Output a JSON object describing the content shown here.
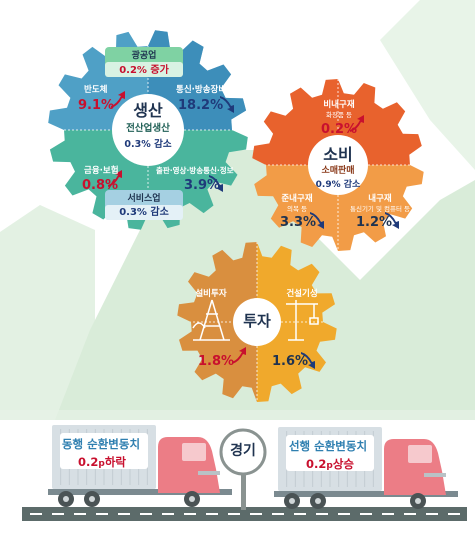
{
  "production": {
    "title": "생산",
    "subtitle": "전산업생산",
    "change": "0.3% 감소",
    "mining": {
      "label": "광공업",
      "value": "0.2% 증가"
    },
    "semiconductor": {
      "label": "반도체",
      "value": "9.1%",
      "direction": "up"
    },
    "telecom": {
      "label": "통신·방송장비",
      "value": "18.2%",
      "direction": "down"
    },
    "finance": {
      "label": "금융·보험",
      "value": "0.8%",
      "direction": "up"
    },
    "publishing": {
      "label": "출판·영상·방송통신·정보",
      "value": "3.9%",
      "direction": "down"
    },
    "services": {
      "label": "서비스업",
      "value": "0.3% 감소"
    }
  },
  "consumption": {
    "title": "소비",
    "subtitle": "소매판매",
    "change": "0.9% 감소",
    "nondurable": {
      "label": "비내구재",
      "sub": "화장품 등",
      "value": "0.2%",
      "direction": "up"
    },
    "semidurable": {
      "label": "준내구재",
      "sub": "의복 등",
      "value": "3.3%",
      "direction": "down"
    },
    "durable": {
      "label": "내구재",
      "sub": "통신기기 및 컴퓨터 등",
      "value": "1.2%",
      "direction": "down"
    }
  },
  "investment": {
    "title": "투자",
    "facility": {
      "label": "설비투자",
      "value": "1.8%",
      "direction": "up"
    },
    "construction": {
      "label": "건설기성",
      "value": "1.6%",
      "direction": "down"
    }
  },
  "economy": {
    "title": "경기",
    "coincident": {
      "label": "동행 순환변동치",
      "value": "0.2",
      "unit": "p",
      "suffix": "하락"
    },
    "leading": {
      "label": "선행 순환변동치",
      "value": "0.2",
      "unit": "p",
      "suffix": "상승"
    }
  },
  "colors": {
    "prod_top": "#4fa0c6",
    "prod_bottom": "#4ab59d",
    "cons_top": "#e8622d",
    "cons_bottom": "#f29c47",
    "inv_left": "#d98f3f",
    "inv_right": "#f0a92c",
    "mountain": "#d9ecd9",
    "truck_cab": "#ec7d86",
    "truck_box": "#d7dfe4",
    "road": "#5c6b6a",
    "up_arrow": "#c8102e",
    "down_arrow": "#1f3a7a"
  },
  "icons": [
    "oil-rig-icon",
    "crane-icon",
    "up-arrow-icon",
    "down-arrow-icon",
    "truck-icon",
    "signpost-icon"
  ]
}
